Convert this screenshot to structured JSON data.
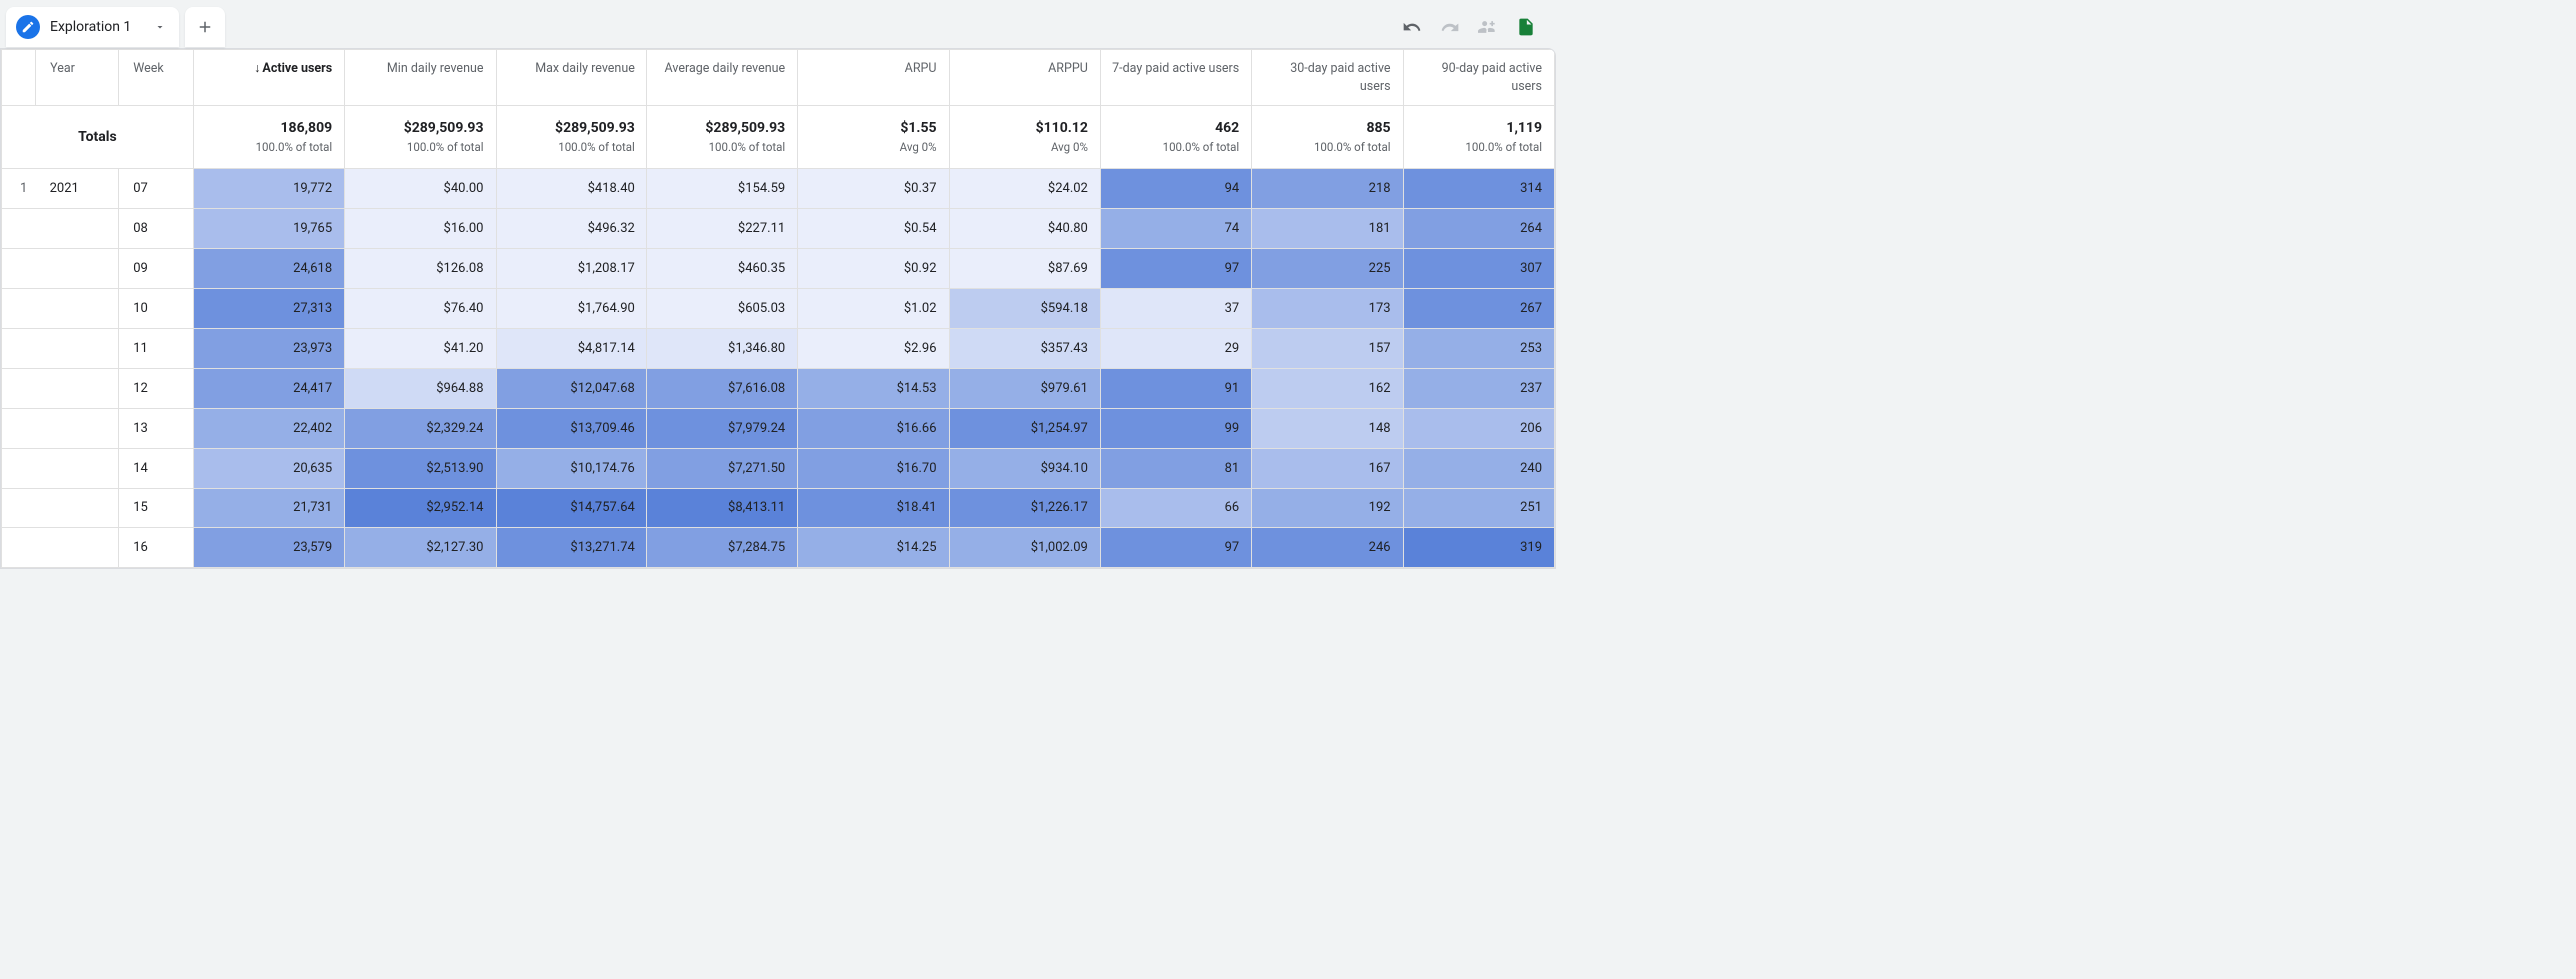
{
  "tab": {
    "label": "Exploration 1"
  },
  "columns": {
    "dims": [
      "Year",
      "Week"
    ],
    "metrics": [
      {
        "key": "active_users",
        "label": "Active users",
        "sorted_desc": true
      },
      {
        "key": "min_rev",
        "label": "Min daily revenue"
      },
      {
        "key": "max_rev",
        "label": "Max daily revenue"
      },
      {
        "key": "avg_rev",
        "label": "Average daily revenue"
      },
      {
        "key": "arpu",
        "label": "ARPU"
      },
      {
        "key": "arppu",
        "label": "ARPPU"
      },
      {
        "key": "pau7",
        "label": "7-day paid active users"
      },
      {
        "key": "pau30",
        "label": "30-day paid active users"
      },
      {
        "key": "pau90",
        "label": "90-day paid active users"
      }
    ]
  },
  "totals_label": "Totals",
  "totals": [
    {
      "value": "186,809",
      "sub": "100.0% of total"
    },
    {
      "value": "$289,509.93",
      "sub": "100.0% of total"
    },
    {
      "value": "$289,509.93",
      "sub": "100.0% of total"
    },
    {
      "value": "$289,509.93",
      "sub": "100.0% of total"
    },
    {
      "value": "$1.55",
      "sub": "Avg 0%"
    },
    {
      "value": "$110.12",
      "sub": "Avg 0%"
    },
    {
      "value": "462",
      "sub": "100.0% of total"
    },
    {
      "value": "885",
      "sub": "100.0% of total"
    },
    {
      "value": "1,119",
      "sub": "100.0% of total"
    }
  ],
  "heatmap_palette": {
    "s0": "#eaeefb",
    "s1": "#dfe6f9",
    "s2": "#cfdaf5",
    "s3": "#bdccf0",
    "s4": "#a9bdec",
    "s5": "#95afe7",
    "s6": "#819fe2",
    "s7": "#6e91de",
    "s8": "#5a82d9"
  },
  "rows": [
    {
      "idx": "1",
      "year": "2021",
      "week": "07",
      "cells": [
        {
          "v": "19,772",
          "s": 4
        },
        {
          "v": "$40.00",
          "s": 0
        },
        {
          "v": "$418.40",
          "s": 0
        },
        {
          "v": "$154.59",
          "s": 0
        },
        {
          "v": "$0.37",
          "s": 0
        },
        {
          "v": "$24.02",
          "s": 0
        },
        {
          "v": "94",
          "s": 7
        },
        {
          "v": "218",
          "s": 6
        },
        {
          "v": "314",
          "s": 7
        }
      ]
    },
    {
      "idx": "",
      "year": "",
      "week": "08",
      "cells": [
        {
          "v": "19,765",
          "s": 4
        },
        {
          "v": "$16.00",
          "s": 0
        },
        {
          "v": "$496.32",
          "s": 0
        },
        {
          "v": "$227.11",
          "s": 0
        },
        {
          "v": "$0.54",
          "s": 0
        },
        {
          "v": "$40.80",
          "s": 0
        },
        {
          "v": "74",
          "s": 5
        },
        {
          "v": "181",
          "s": 4
        },
        {
          "v": "264",
          "s": 6
        }
      ]
    },
    {
      "idx": "",
      "year": "",
      "week": "09",
      "cells": [
        {
          "v": "24,618",
          "s": 6
        },
        {
          "v": "$126.08",
          "s": 0
        },
        {
          "v": "$1,208.17",
          "s": 0
        },
        {
          "v": "$460.35",
          "s": 0
        },
        {
          "v": "$0.92",
          "s": 0
        },
        {
          "v": "$87.69",
          "s": 0
        },
        {
          "v": "97",
          "s": 7
        },
        {
          "v": "225",
          "s": 6
        },
        {
          "v": "307",
          "s": 7
        }
      ]
    },
    {
      "idx": "",
      "year": "",
      "week": "10",
      "cells": [
        {
          "v": "27,313",
          "s": 7
        },
        {
          "v": "$76.40",
          "s": 0
        },
        {
          "v": "$1,764.90",
          "s": 0
        },
        {
          "v": "$605.03",
          "s": 0
        },
        {
          "v": "$1.02",
          "s": 0
        },
        {
          "v": "$594.18",
          "s": 3
        },
        {
          "v": "37",
          "s": 1
        },
        {
          "v": "173",
          "s": 4
        },
        {
          "v": "267",
          "s": 7
        }
      ]
    },
    {
      "idx": "",
      "year": "",
      "week": "11",
      "cells": [
        {
          "v": "23,973",
          "s": 6
        },
        {
          "v": "$41.20",
          "s": 0
        },
        {
          "v": "$4,817.14",
          "s": 1
        },
        {
          "v": "$1,346.80",
          "s": 1
        },
        {
          "v": "$2.96",
          "s": 0
        },
        {
          "v": "$357.43",
          "s": 2
        },
        {
          "v": "29",
          "s": 1
        },
        {
          "v": "157",
          "s": 3
        },
        {
          "v": "253",
          "s": 5
        }
      ]
    },
    {
      "idx": "",
      "year": "",
      "week": "12",
      "cells": [
        {
          "v": "24,417",
          "s": 6
        },
        {
          "v": "$964.88",
          "s": 2
        },
        {
          "v": "$12,047.68",
          "s": 6
        },
        {
          "v": "$7,616.08",
          "s": 6
        },
        {
          "v": "$14.53",
          "s": 5
        },
        {
          "v": "$979.61",
          "s": 5
        },
        {
          "v": "91",
          "s": 7
        },
        {
          "v": "162",
          "s": 3
        },
        {
          "v": "237",
          "s": 5
        }
      ]
    },
    {
      "idx": "",
      "year": "",
      "week": "13",
      "cells": [
        {
          "v": "22,402",
          "s": 5
        },
        {
          "v": "$2,329.24",
          "s": 6
        },
        {
          "v": "$13,709.46",
          "s": 7
        },
        {
          "v": "$7,979.24",
          "s": 7
        },
        {
          "v": "$16.66",
          "s": 6
        },
        {
          "v": "$1,254.97",
          "s": 7
        },
        {
          "v": "99",
          "s": 7
        },
        {
          "v": "148",
          "s": 3
        },
        {
          "v": "206",
          "s": 4
        }
      ]
    },
    {
      "idx": "",
      "year": "",
      "week": "14",
      "cells": [
        {
          "v": "20,635",
          "s": 4
        },
        {
          "v": "$2,513.90",
          "s": 7
        },
        {
          "v": "$10,174.76",
          "s": 5
        },
        {
          "v": "$7,271.50",
          "s": 6
        },
        {
          "v": "$16.70",
          "s": 6
        },
        {
          "v": "$934.10",
          "s": 5
        },
        {
          "v": "81",
          "s": 6
        },
        {
          "v": "167",
          "s": 4
        },
        {
          "v": "240",
          "s": 5
        }
      ]
    },
    {
      "idx": "",
      "year": "",
      "week": "15",
      "cells": [
        {
          "v": "21,731",
          "s": 5
        },
        {
          "v": "$2,952.14",
          "s": 8
        },
        {
          "v": "$14,757.64",
          "s": 8
        },
        {
          "v": "$8,413.11",
          "s": 8
        },
        {
          "v": "$18.41",
          "s": 7
        },
        {
          "v": "$1,226.17",
          "s": 7
        },
        {
          "v": "66",
          "s": 4
        },
        {
          "v": "192",
          "s": 5
        },
        {
          "v": "251",
          "s": 5
        }
      ]
    },
    {
      "idx": "",
      "year": "",
      "week": "16",
      "cells": [
        {
          "v": "23,579",
          "s": 6
        },
        {
          "v": "$2,127.30",
          "s": 5
        },
        {
          "v": "$13,271.74",
          "s": 7
        },
        {
          "v": "$7,284.75",
          "s": 6
        },
        {
          "v": "$14.25",
          "s": 5
        },
        {
          "v": "$1,002.09",
          "s": 5
        },
        {
          "v": "97",
          "s": 7
        },
        {
          "v": "246",
          "s": 7
        },
        {
          "v": "319",
          "s": 8
        }
      ]
    }
  ],
  "col_widths": {
    "idx": "32px",
    "year": "78px",
    "week": "70px",
    "metric": [
      "142px",
      "142px",
      "142px",
      "142px",
      "142px",
      "142px",
      "142px",
      "142px",
      "142px"
    ]
  }
}
